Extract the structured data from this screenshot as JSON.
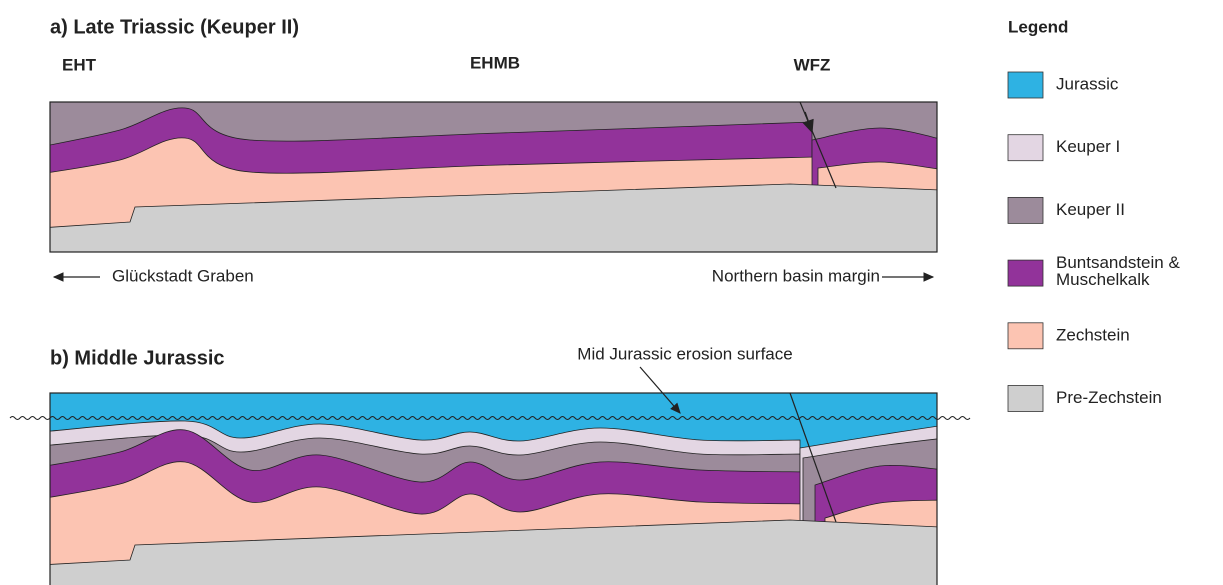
{
  "panels": [
    {
      "title": "a) Late Triassic (Keuper II)",
      "labels": [
        "EHT",
        "EHMB",
        "WFZ"
      ],
      "left_arrow": "Glückstadt Graben",
      "right_arrow": "Northern basin margin"
    },
    {
      "title": "b) Middle Jurassic",
      "annotation": "Mid Jurassic erosion surface"
    }
  ],
  "legend": {
    "title": "Legend",
    "items": [
      {
        "label": "Jurassic",
        "color": "#2eb2e3"
      },
      {
        "label": "Keuper I",
        "color": "#e3d6e3"
      },
      {
        "label": "Keuper II",
        "color": "#9c8b9b"
      },
      {
        "label": "Buntsandstein & Muschelkalk",
        "color": "#92339a"
      },
      {
        "label": "Zechstein",
        "color": "#fcc4b2"
      },
      {
        "label": "Pre-Zechstein",
        "color": "#cfcfcf"
      }
    ]
  }
}
